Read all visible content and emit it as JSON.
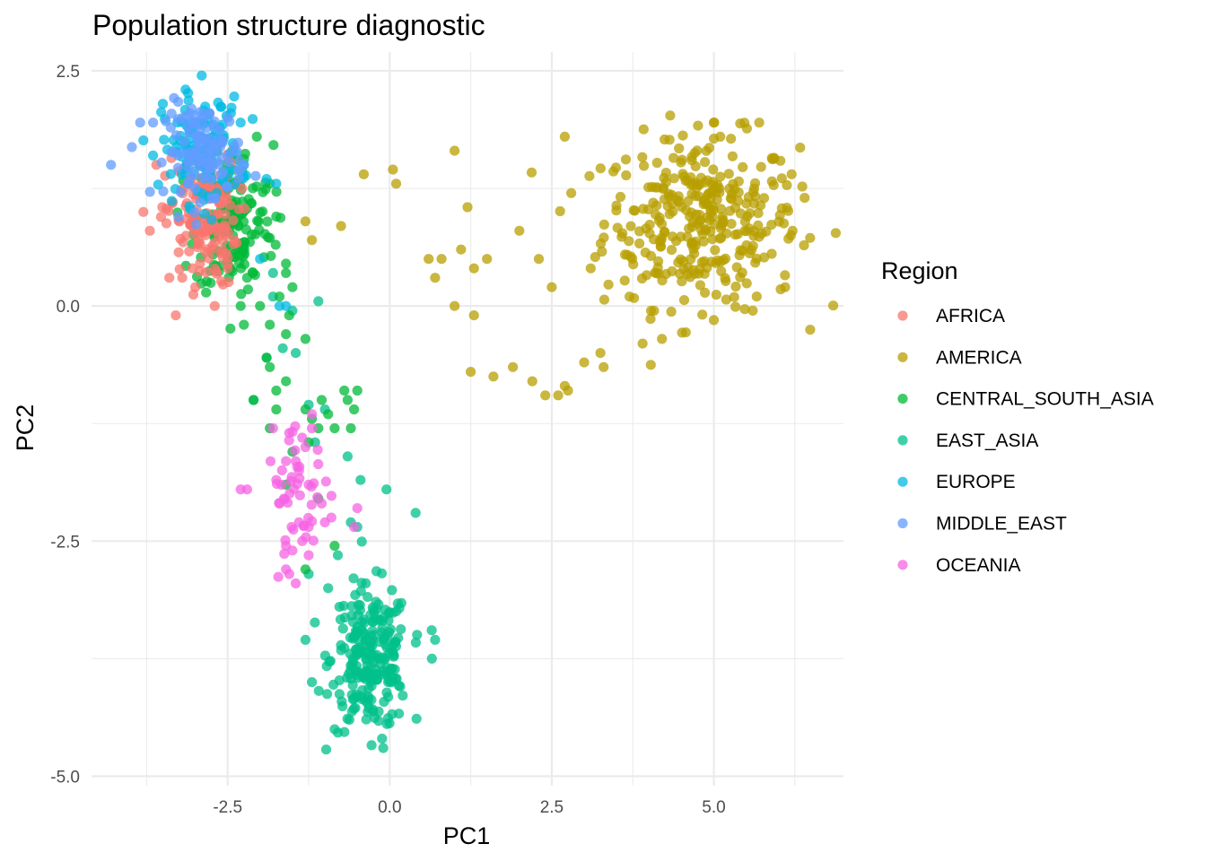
{
  "chart_data": {
    "type": "scatter",
    "title": "Population structure diagnostic",
    "xlabel": "PC1",
    "ylabel": "PC2",
    "xlim": [
      -4.6,
      7.0
    ],
    "ylim": [
      -5.1,
      2.7
    ],
    "x_ticks": [
      -2.5,
      0.0,
      2.5,
      5.0
    ],
    "x_tick_labels": [
      "-2.5",
      "0.0",
      "2.5",
      "5.0"
    ],
    "y_ticks": [
      -5.0,
      -2.5,
      0.0,
      2.5
    ],
    "y_tick_labels": [
      "-5.0",
      "-2.5",
      "0.0",
      "2.5"
    ],
    "grid": true,
    "legend_title": "Region",
    "legend_position": "right",
    "series": [
      {
        "name": "AFRICA",
        "color": "#F8766D",
        "cluster": {
          "cx": -2.9,
          "cy": 0.9,
          "sx": 0.28,
          "sy": 0.35,
          "n": 140
        },
        "points": [
          [
            -3.8,
            1.0
          ],
          [
            -3.3,
            -0.1
          ],
          [
            -2.7,
            0.0
          ],
          [
            -3.4,
            0.3
          ],
          [
            -3.6,
            1.5
          ],
          [
            -3.2,
            0.3
          ],
          [
            -2.5,
            0.4
          ],
          [
            -3.7,
            0.8
          ],
          [
            -2.4,
            0.7
          ],
          [
            -3.0,
            0.2
          ]
        ]
      },
      {
        "name": "AMERICA",
        "color": "#B79F00",
        "cluster": {
          "cx": 4.8,
          "cy": 0.9,
          "sx": 0.75,
          "sy": 0.45,
          "n": 330
        },
        "points": [
          [
            1.0,
            1.65
          ],
          [
            -0.4,
            1.4
          ],
          [
            0.05,
            1.45
          ],
          [
            0.1,
            1.3
          ],
          [
            -1.3,
            0.9
          ],
          [
            -0.75,
            0.85
          ],
          [
            -1.2,
            0.7
          ],
          [
            0.6,
            0.5
          ],
          [
            0.7,
            0.3
          ],
          [
            0.8,
            0.5
          ],
          [
            1.1,
            0.6
          ],
          [
            1.3,
            0.4
          ],
          [
            1.0,
            0.0
          ],
          [
            1.3,
            -0.1
          ],
          [
            1.25,
            -0.7
          ],
          [
            1.6,
            -0.75
          ],
          [
            1.9,
            -0.65
          ],
          [
            2.2,
            -0.8
          ],
          [
            2.4,
            -0.95
          ],
          [
            2.6,
            -0.95
          ],
          [
            2.7,
            -0.85
          ],
          [
            2.75,
            -0.9
          ],
          [
            3.0,
            -0.6
          ],
          [
            3.25,
            -0.5
          ],
          [
            3.3,
            -0.65
          ],
          [
            2.7,
            1.8
          ],
          [
            2.8,
            1.2
          ],
          [
            1.2,
            1.05
          ],
          [
            1.5,
            0.5
          ],
          [
            2.0,
            0.8
          ],
          [
            2.3,
            0.5
          ],
          [
            2.5,
            0.2
          ],
          [
            3.1,
            0.4
          ],
          [
            3.7,
            0.1
          ],
          [
            3.9,
            -0.4
          ],
          [
            4.2,
            -0.35
          ],
          [
            5.0,
            1.95
          ],
          [
            5.1,
            1.8
          ],
          [
            5.7,
            1.95
          ],
          [
            6.2,
            1.4
          ],
          [
            6.4,
            1.15
          ],
          [
            6.1,
            0.2
          ],
          [
            5.6,
            -0.05
          ],
          [
            5.0,
            -0.15
          ]
        ]
      },
      {
        "name": "CENTRAL_SOUTH_ASIA",
        "color": "#00BA38",
        "cluster": {
          "cx": -2.4,
          "cy": 0.9,
          "sx": 0.3,
          "sy": 0.4,
          "n": 160
        },
        "points": [
          [
            -2.05,
            1.8
          ],
          [
            -1.85,
            1.3
          ],
          [
            -1.75,
            0.95
          ],
          [
            -1.6,
            0.45
          ],
          [
            -1.5,
            0.2
          ],
          [
            -1.6,
            0.35
          ],
          [
            -1.7,
            0.1
          ],
          [
            -1.85,
            -0.2
          ],
          [
            -1.9,
            -0.55
          ],
          [
            -1.85,
            -0.65
          ],
          [
            -1.6,
            -0.3
          ],
          [
            -1.55,
            -0.1
          ],
          [
            -1.3,
            -0.35
          ],
          [
            -1.6,
            -0.8
          ],
          [
            -1.75,
            -0.9
          ],
          [
            -2.1,
            -1.0
          ],
          [
            -1.75,
            -1.1
          ],
          [
            -1.85,
            -1.3
          ],
          [
            -1.5,
            -1.55
          ],
          [
            -1.3,
            -1.1
          ],
          [
            -1.2,
            -1.2
          ],
          [
            -0.95,
            -1.15
          ],
          [
            -1.05,
            -1.0
          ],
          [
            -0.7,
            -0.9
          ],
          [
            -0.65,
            -1.0
          ],
          [
            -0.5,
            -0.9
          ],
          [
            -0.55,
            -1.1
          ],
          [
            -0.85,
            -1.3
          ],
          [
            -0.6,
            -1.3
          ],
          [
            -1.25,
            -1.45
          ],
          [
            -1.1,
            -1.3
          ],
          [
            -1.6,
            -1.9
          ],
          [
            -1.1,
            -2.05
          ],
          [
            -1.3,
            -2.8
          ],
          [
            -0.85,
            -2.55
          ],
          [
            -2.3,
            0.0
          ],
          [
            -2.25,
            -0.2
          ],
          [
            -2.0,
            0.0
          ],
          [
            -2.2,
            0.3
          ]
        ]
      },
      {
        "name": "EAST_ASIA",
        "color": "#00C08B",
        "cluster": {
          "cx": -0.3,
          "cy": -3.75,
          "sx": 0.3,
          "sy": 0.38,
          "n": 240
        },
        "points": [
          [
            -1.1,
            0.05
          ],
          [
            -1.8,
            0.35
          ],
          [
            -1.9,
            -0.55
          ],
          [
            -1.65,
            -0.45
          ],
          [
            -1.8,
            0.1
          ],
          [
            -1.5,
            -0.05
          ],
          [
            -1.45,
            -0.5
          ],
          [
            -2.1,
            -1.0
          ],
          [
            -1.25,
            -1.05
          ],
          [
            -1.0,
            -1.1
          ],
          [
            -1.15,
            -1.45
          ],
          [
            -0.65,
            -1.6
          ],
          [
            -0.45,
            -1.85
          ],
          [
            -0.5,
            -2.35
          ],
          [
            -0.05,
            -1.95
          ],
          [
            0.4,
            -2.2
          ],
          [
            -0.8,
            -2.65
          ],
          [
            -0.6,
            -2.3
          ],
          [
            -1.25,
            -2.85
          ],
          [
            -0.95,
            -3.0
          ],
          [
            -1.3,
            -3.55
          ],
          [
            -1.2,
            -4.0
          ],
          [
            0.7,
            -3.55
          ],
          [
            0.65,
            -3.75
          ],
          [
            -0.1,
            -4.7
          ],
          [
            -0.85,
            -4.5
          ]
        ]
      },
      {
        "name": "EUROPE",
        "color": "#00B9E3",
        "cluster": {
          "cx": -2.9,
          "cy": 1.65,
          "sx": 0.3,
          "sy": 0.28,
          "n": 120
        },
        "points": [
          [
            -2.9,
            2.45
          ],
          [
            -3.15,
            2.3
          ],
          [
            -3.5,
            2.15
          ],
          [
            -3.65,
            1.6
          ],
          [
            -2.45,
            2.05
          ],
          [
            -2.3,
            1.95
          ],
          [
            -2.25,
            1.5
          ],
          [
            -1.9,
            1.35
          ],
          [
            -1.75,
            1.3
          ],
          [
            -2.0,
            0.5
          ],
          [
            -1.7,
            0.0
          ],
          [
            -1.6,
            0.0
          ]
        ]
      },
      {
        "name": "MIDDLE_EAST",
        "color": "#619CFF",
        "cluster": {
          "cx": -2.85,
          "cy": 1.65,
          "sx": 0.3,
          "sy": 0.25,
          "n": 110
        },
        "points": [
          [
            -4.3,
            1.5
          ],
          [
            -3.85,
            1.95
          ],
          [
            -3.65,
            1.95
          ],
          [
            -2.6,
            1.4
          ],
          [
            -2.4,
            1.7
          ],
          [
            -2.25,
            1.5
          ],
          [
            -2.7,
            1.15
          ],
          [
            -3.1,
            1.3
          ]
        ]
      },
      {
        "name": "OCEANIA",
        "color": "#F564E3",
        "cluster": {
          "cx": -1.4,
          "cy": -2.0,
          "sx": 0.25,
          "sy": 0.3,
          "n": 40
        },
        "points": [
          [
            -2.3,
            -1.95
          ],
          [
            -2.2,
            -1.95
          ],
          [
            -1.8,
            -1.3
          ],
          [
            -1.75,
            -1.85
          ],
          [
            -1.7,
            -2.1
          ],
          [
            -1.6,
            -1.65
          ],
          [
            -1.55,
            -1.35
          ],
          [
            -1.35,
            -1.4
          ],
          [
            -1.3,
            -1.5
          ],
          [
            -1.2,
            -1.3
          ],
          [
            -1.2,
            -1.15
          ],
          [
            -1.45,
            -1.65
          ],
          [
            -1.4,
            -1.75
          ],
          [
            -1.25,
            -1.9
          ],
          [
            -1.4,
            -2.3
          ],
          [
            -1.25,
            -2.35
          ],
          [
            -1.35,
            -2.5
          ],
          [
            -1.25,
            -2.65
          ],
          [
            -1.6,
            -2.55
          ],
          [
            -1.5,
            -2.6
          ],
          [
            -1.55,
            -2.85
          ],
          [
            -1.45,
            -2.95
          ],
          [
            -1.6,
            -2.8
          ],
          [
            -1.0,
            -2.3
          ],
          [
            -0.9,
            -2.25
          ],
          [
            -0.5,
            -2.15
          ],
          [
            -0.55,
            -2.35
          ],
          [
            -1.05,
            -2.1
          ]
        ]
      }
    ]
  }
}
